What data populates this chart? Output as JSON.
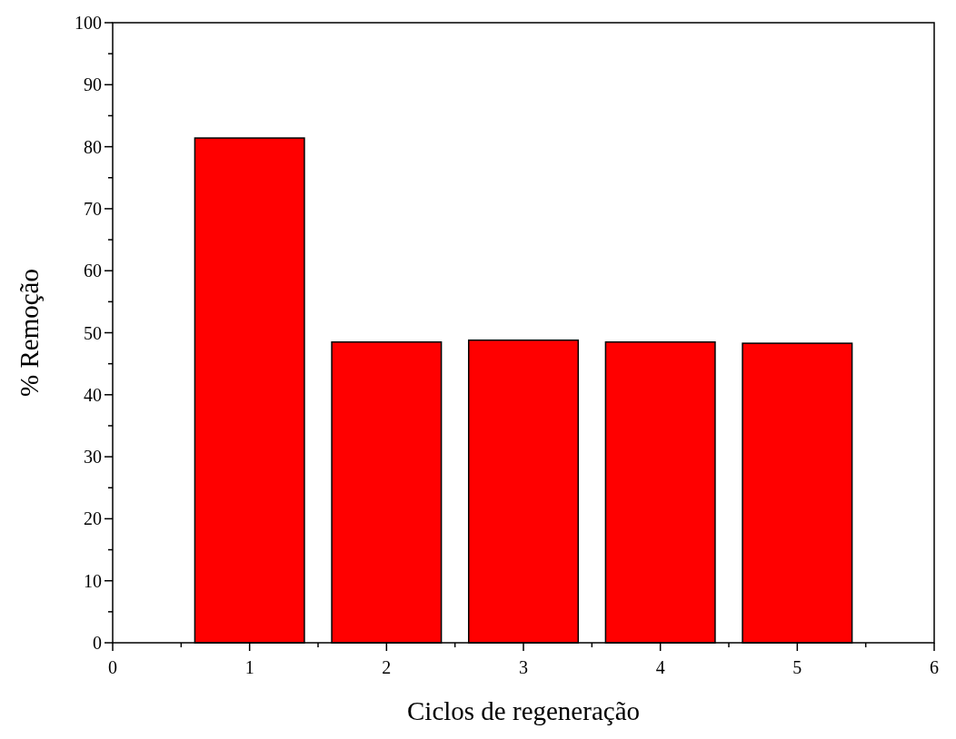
{
  "chart_data": {
    "type": "bar",
    "xlabel": "Ciclos de regeneração",
    "ylabel": "% Remoção",
    "x": [
      1,
      2,
      3,
      4,
      5
    ],
    "values": [
      81.4,
      48.5,
      48.8,
      48.5,
      48.3
    ],
    "color": "#ff0000",
    "xlim": [
      0,
      6
    ],
    "ylim": [
      0,
      100
    ],
    "xticks": [
      0,
      {
        "value": 0.5,
        "label": null
      },
      1,
      {
        "value": 1.5,
        "label": null
      },
      2,
      {
        "value": 2.5,
        "label": null
      },
      3,
      {
        "value": 3.5,
        "label": null
      },
      4,
      {
        "value": 4.5,
        "label": null
      },
      5,
      {
        "value": 5.5,
        "label": null
      },
      6
    ],
    "yticks": [
      0,
      {
        "value": 5,
        "label": null
      },
      10,
      {
        "value": 15,
        "label": null
      },
      20,
      {
        "value": 25,
        "label": null
      },
      30,
      {
        "value": 35,
        "label": null
      },
      40,
      {
        "value": 45,
        "label": null
      },
      50,
      {
        "value": 55,
        "label": null
      },
      60,
      {
        "value": 65,
        "label": null
      },
      70,
      {
        "value": 75,
        "label": null
      },
      80,
      {
        "value": 85,
        "label": null
      },
      90,
      {
        "value": 95,
        "label": null
      },
      100
    ],
    "grid": false
  }
}
